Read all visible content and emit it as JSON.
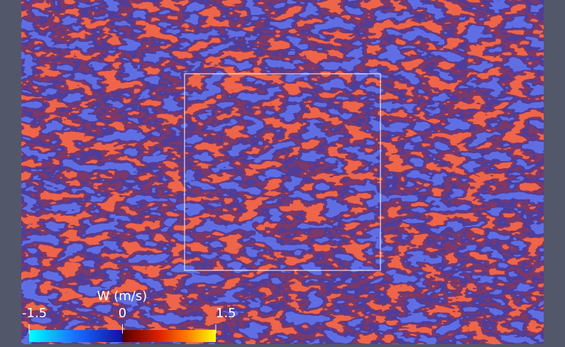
{
  "colorbar": {
    "title": "W (m/s)",
    "range": [
      -1.5,
      1.5
    ],
    "ticks": [
      -1.5,
      0,
      1.5
    ]
  }
}
